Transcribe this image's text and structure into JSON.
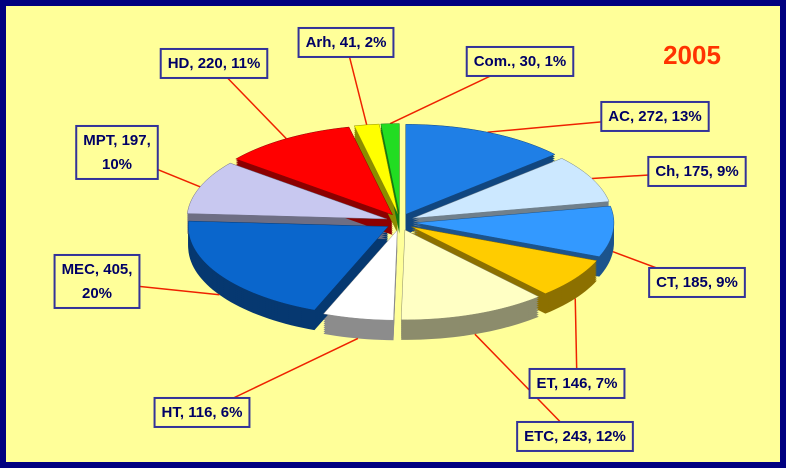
{
  "chart_data": {
    "type": "pie",
    "title": "2005",
    "values": [
      272,
      175,
      185,
      146,
      243,
      116,
      405,
      197,
      220,
      41,
      30
    ],
    "value_labels": [
      "AC, 272, 13%",
      "Ch, 175, 9%",
      "CT, 185, 9%",
      "ET, 146, 7%",
      "ETC, 243, 12%",
      "HT, 116, 6%",
      "MEC, 405, 20%",
      "MPT, 197, 10%",
      "HD, 220, 11%",
      "Arh, 41, 2%",
      "Com., 30, 1%"
    ],
    "colors": [
      "#1f7fe6",
      "#cce8ff",
      "#3399ff",
      "#ffcc00",
      "#ffffc4",
      "#ffffff",
      "#0a66cc",
      "#c8c8f0",
      "#ff0000",
      "#ffff00",
      "#22dd22"
    ]
  }
}
